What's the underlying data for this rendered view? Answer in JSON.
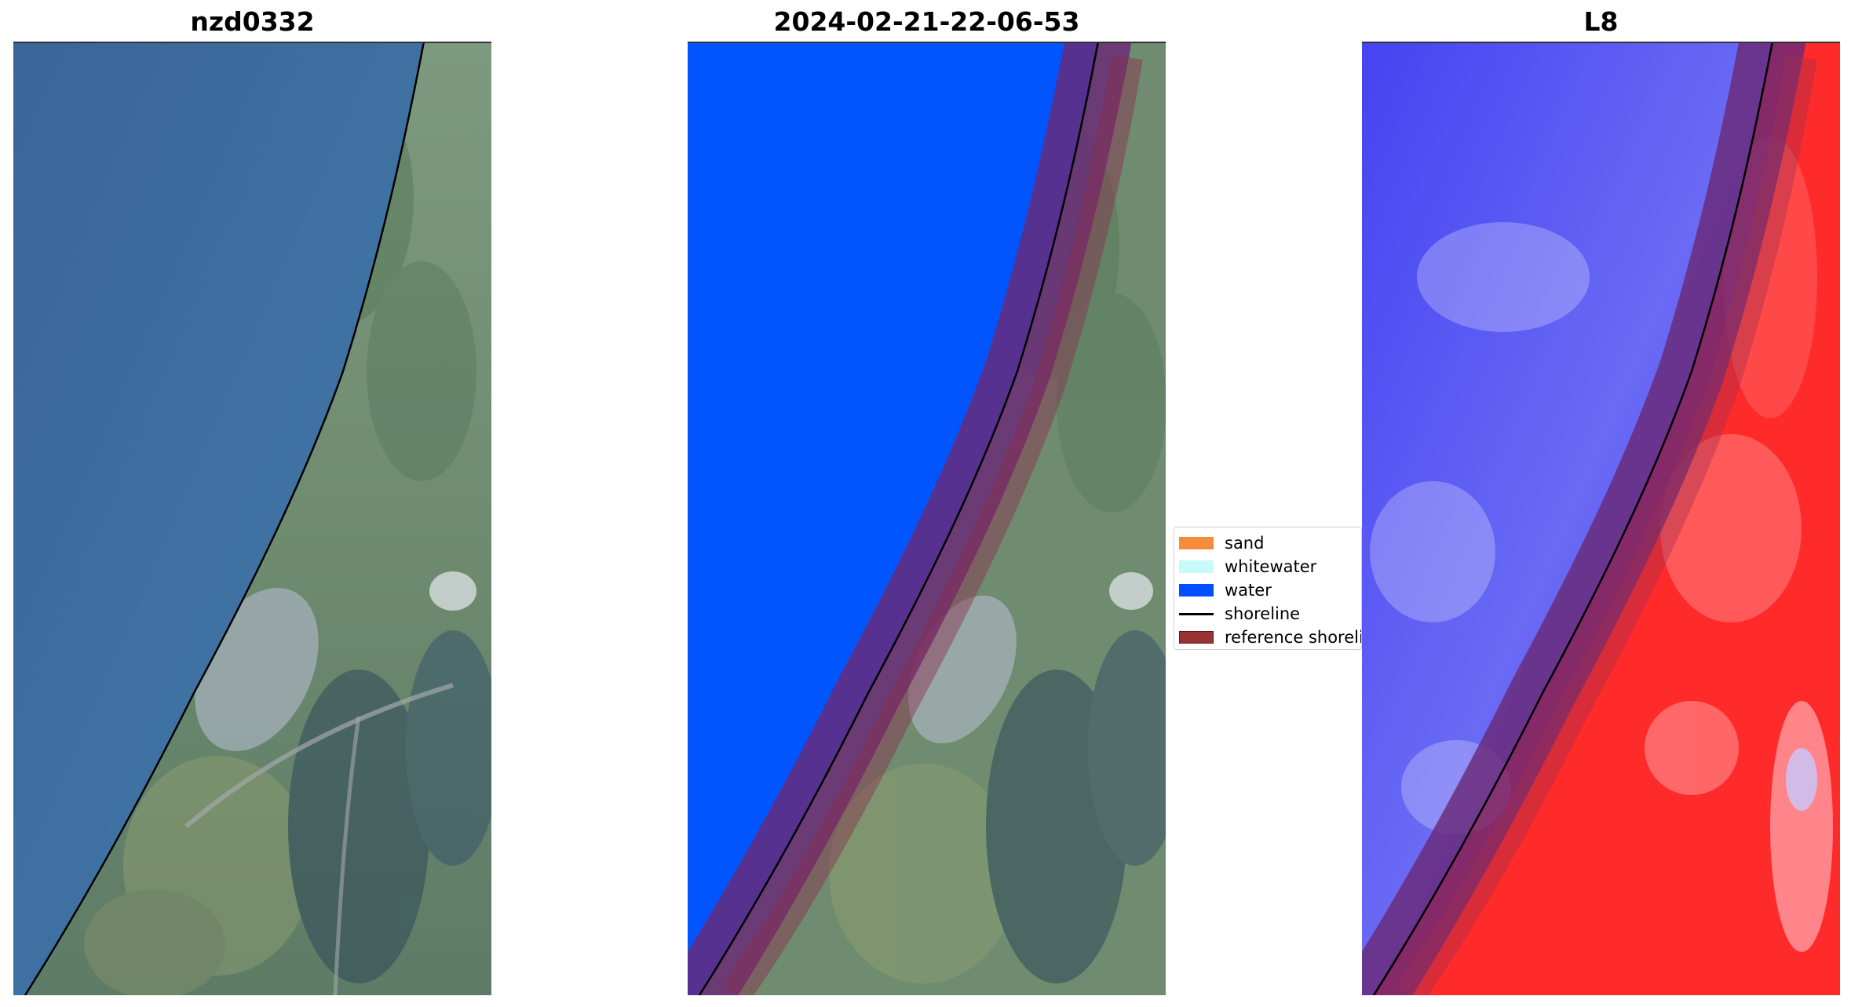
{
  "panels": [
    {
      "title": "nzd0332"
    },
    {
      "title": "2024-02-21-22-06-53"
    },
    {
      "title": "L8"
    }
  ],
  "legend": {
    "items": [
      {
        "label": "sand",
        "color": "#f58c3c",
        "kind": "patch"
      },
      {
        "label": "whitewater",
        "color": "#c8fafa",
        "kind": "patch"
      },
      {
        "label": "water",
        "color": "#0050ff",
        "kind": "patch"
      },
      {
        "label": "shoreline",
        "color": "#000000",
        "kind": "line"
      },
      {
        "label": "reference shoreline",
        "color": "#993333",
        "kind": "patch"
      }
    ]
  },
  "colors": {
    "ocean": "#3e6f9f",
    "land": "#6f8a72",
    "water_class": "#0055ff",
    "reference_buffer": "#6a2a78",
    "index_water": "#4a4af0",
    "index_land": "#ff2020"
  }
}
